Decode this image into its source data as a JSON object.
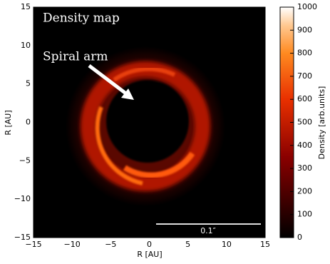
{
  "chart_data": {
    "type": "heatmap",
    "xlabel": "R [AU]",
    "ylabel": "R [AU]",
    "xlim": [
      -15,
      15
    ],
    "ylim": [
      -15,
      15
    ],
    "xticks": [
      {
        "value": -15,
        "label": "−15"
      },
      {
        "value": -10,
        "label": "−10"
      },
      {
        "value": -5,
        "label": "−5"
      },
      0,
      5,
      10,
      15
    ],
    "yticks": [
      {
        "value": -15,
        "label": "−15"
      },
      {
        "value": -10,
        "label": "−10"
      },
      {
        "value": -5,
        "label": "−5"
      },
      0,
      5,
      10,
      15
    ],
    "colorbar": {
      "label": "Density [arb.units]",
      "clim": [
        0,
        1000
      ],
      "ticks": [
        0,
        100,
        200,
        300,
        400,
        500,
        600,
        700,
        800,
        900,
        1000
      ]
    },
    "annotations": [
      "Density map",
      "Spiral arm"
    ],
    "scalebar_label": "0.1″"
  }
}
